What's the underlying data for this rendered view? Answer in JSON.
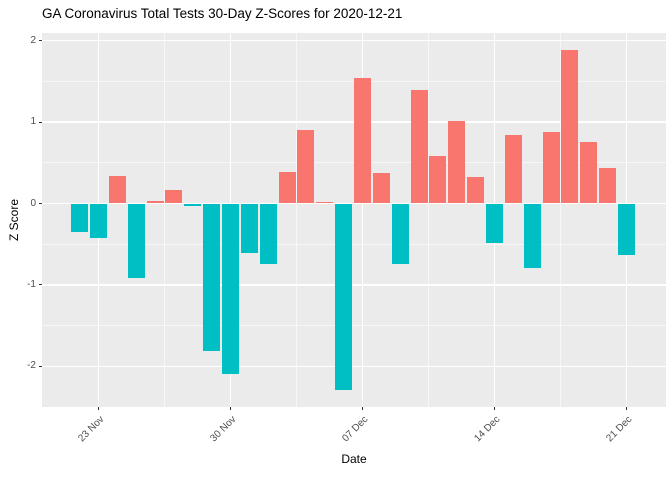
{
  "title": "GA Coronavirus Total Tests 30-Day Z-Scores for 2020-12-21",
  "chart_data": {
    "type": "bar",
    "title": "GA Coronavirus Total Tests 30-Day Z-Scores for 2020-12-21",
    "xlabel": "Date",
    "ylabel": "Z Score",
    "x": [
      "2020-11-22",
      "2020-11-23",
      "2020-11-24",
      "2020-11-25",
      "2020-11-26",
      "2020-11-27",
      "2020-11-28",
      "2020-11-29",
      "2020-11-30",
      "2020-12-01",
      "2020-12-02",
      "2020-12-03",
      "2020-12-04",
      "2020-12-05",
      "2020-12-06",
      "2020-12-07",
      "2020-12-08",
      "2020-12-09",
      "2020-12-10",
      "2020-12-11",
      "2020-12-12",
      "2020-12-13",
      "2020-12-14",
      "2020-12-15",
      "2020-12-16",
      "2020-12-17",
      "2020-12-18",
      "2020-12-19",
      "2020-12-20",
      "2020-12-21"
    ],
    "values": [
      -0.35,
      -0.42,
      0.34,
      -0.91,
      0.03,
      0.17,
      -0.03,
      -1.81,
      -2.1,
      -0.61,
      -0.74,
      0.39,
      0.9,
      0.02,
      -2.29,
      1.54,
      0.38,
      -0.74,
      1.4,
      0.58,
      1.01,
      0.33,
      -0.48,
      0.84,
      -0.79,
      0.88,
      1.89,
      0.76,
      0.44,
      -0.63
    ],
    "xticks": [
      {
        "label": "23 Nov",
        "date": "2020-11-23"
      },
      {
        "label": "30 Nov",
        "date": "2020-11-30"
      },
      {
        "label": "07 Dec",
        "date": "2020-12-07"
      },
      {
        "label": "14 Dec",
        "date": "2020-12-14"
      },
      {
        "label": "21 Dec",
        "date": "2020-12-21"
      }
    ],
    "yticks": [
      2,
      1,
      0,
      -1,
      -2
    ],
    "y_minor": [
      1.5,
      0.5,
      -0.5,
      -1.5
    ],
    "ylim": [
      -2.5,
      2.1
    ],
    "bar_colors": {
      "positive": "#F8766D",
      "negative": "#00BFC4"
    },
    "panel_background": "#EBEBEB",
    "gridline_color": "#FFFFFF",
    "tick_mark_color": "#333333",
    "tick_label_color": "#4D4D4D",
    "legend": "none",
    "grid": {
      "major": true,
      "minor": true
    }
  }
}
